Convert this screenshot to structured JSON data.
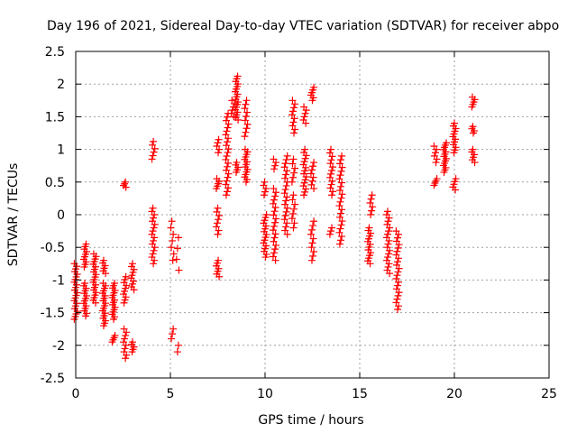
{
  "chart_data": {
    "type": "scatter",
    "title": "Day 196 of 2021, Sidereal Day-to-day VTEC variation (SDTVAR) for receiver abpo",
    "xlabel": "GPS time / hours",
    "ylabel": "SDTVAR / TECUs",
    "xlim": [
      0,
      25
    ],
    "ylim": [
      -2.5,
      2.5
    ],
    "xticks": [
      "0",
      "5",
      "10",
      "15",
      "20",
      "25"
    ],
    "yticks": [
      "2.5",
      "2",
      "1.5",
      "1",
      "0.5",
      "0",
      "-0.5",
      "-1",
      "-1.5",
      "-2",
      "-2.5"
    ],
    "grid": true,
    "marker": "+",
    "color": "#ff0000",
    "clusters": [
      {
        "x": 0.0,
        "y0": -1.6,
        "y1": -0.75,
        "n": 22
      },
      {
        "x": 0.5,
        "y0": -1.55,
        "y1": -1.05,
        "n": 14
      },
      {
        "x": 0.5,
        "y0": -0.8,
        "y1": -0.45,
        "n": 10
      },
      {
        "x": 1.0,
        "y0": -1.35,
        "y1": -0.6,
        "n": 20
      },
      {
        "x": 1.5,
        "y0": -1.7,
        "y1": -1.05,
        "n": 18
      },
      {
        "x": 1.5,
        "y0": -0.9,
        "y1": -0.7,
        "n": 6
      },
      {
        "x": 2.0,
        "y0": -1.6,
        "y1": -1.05,
        "n": 16
      },
      {
        "x": 2.0,
        "y0": -1.95,
        "y1": -1.85,
        "n": 4
      },
      {
        "x": 2.6,
        "y0": -2.2,
        "y1": -1.75,
        "n": 10
      },
      {
        "x": 2.6,
        "y0": -1.35,
        "y1": -0.95,
        "n": 10
      },
      {
        "x": 2.6,
        "y0": 0.42,
        "y1": 0.5,
        "n": 4
      },
      {
        "x": 3.0,
        "y0": -2.1,
        "y1": -1.95,
        "n": 5
      },
      {
        "x": 3.0,
        "y0": -1.15,
        "y1": -0.75,
        "n": 10
      },
      {
        "x": 4.1,
        "y0": -0.75,
        "y1": 0.1,
        "n": 18
      },
      {
        "x": 4.1,
        "y0": 0.85,
        "y1": 1.12,
        "n": 6
      },
      {
        "x": 5.1,
        "y0": -0.7,
        "y1": -0.1,
        "n": 7
      },
      {
        "x": 5.1,
        "y0": -1.9,
        "y1": -1.75,
        "n": 3
      },
      {
        "x": 5.4,
        "y0": -0.85,
        "y1": -0.35,
        "n": 4
      },
      {
        "x": 5.4,
        "y0": -2.1,
        "y1": -2.0,
        "n": 2
      },
      {
        "x": 7.5,
        "y0": -0.95,
        "y1": -0.7,
        "n": 7
      },
      {
        "x": 7.5,
        "y0": -0.3,
        "y1": 0.1,
        "n": 8
      },
      {
        "x": 7.5,
        "y0": 0.4,
        "y1": 0.55,
        "n": 5
      },
      {
        "x": 7.5,
        "y0": 0.95,
        "y1": 1.15,
        "n": 5
      },
      {
        "x": 8.0,
        "y0": 0.3,
        "y1": 1.55,
        "n": 24
      },
      {
        "x": 8.3,
        "y0": 1.5,
        "y1": 1.75,
        "n": 6
      },
      {
        "x": 8.5,
        "y0": 0.65,
        "y1": 0.8,
        "n": 5
      },
      {
        "x": 8.5,
        "y0": 1.45,
        "y1": 2.12,
        "n": 18
      },
      {
        "x": 9.0,
        "y0": 0.5,
        "y1": 1.0,
        "n": 14
      },
      {
        "x": 9.0,
        "y0": 1.2,
        "y1": 1.75,
        "n": 10
      },
      {
        "x": 10.0,
        "y0": -0.65,
        "y1": 0.0,
        "n": 16
      },
      {
        "x": 10.0,
        "y0": 0.3,
        "y1": 0.5,
        "n": 5
      },
      {
        "x": 10.5,
        "y0": -0.7,
        "y1": 0.4,
        "n": 20
      },
      {
        "x": 10.5,
        "y0": 0.7,
        "y1": 0.85,
        "n": 4
      },
      {
        "x": 11.1,
        "y0": -0.3,
        "y1": 0.9,
        "n": 22
      },
      {
        "x": 11.5,
        "y0": -0.2,
        "y1": 0.3,
        "n": 8
      },
      {
        "x": 11.5,
        "y0": 0.5,
        "y1": 0.85,
        "n": 6
      },
      {
        "x": 11.5,
        "y0": 1.25,
        "y1": 1.75,
        "n": 10
      },
      {
        "x": 12.1,
        "y0": 0.3,
        "y1": 1.0,
        "n": 16
      },
      {
        "x": 12.1,
        "y0": 1.4,
        "y1": 1.65,
        "n": 6
      },
      {
        "x": 12.5,
        "y0": -0.7,
        "y1": -0.1,
        "n": 10
      },
      {
        "x": 12.5,
        "y0": 0.4,
        "y1": 0.8,
        "n": 8
      },
      {
        "x": 12.5,
        "y0": 1.75,
        "y1": 1.95,
        "n": 6
      },
      {
        "x": 13.5,
        "y0": -0.3,
        "y1": -0.2,
        "n": 3
      },
      {
        "x": 13.5,
        "y0": 0.3,
        "y1": 1.0,
        "n": 14
      },
      {
        "x": 14.0,
        "y0": -0.45,
        "y1": 0.9,
        "n": 24
      },
      {
        "x": 15.5,
        "y0": -0.75,
        "y1": -0.2,
        "n": 14
      },
      {
        "x": 15.6,
        "y0": 0.0,
        "y1": 0.3,
        "n": 6
      },
      {
        "x": 16.5,
        "y0": -0.9,
        "y1": 0.05,
        "n": 20
      },
      {
        "x": 17.0,
        "y0": -1.45,
        "y1": -0.25,
        "n": 24
      },
      {
        "x": 19.0,
        "y0": 0.45,
        "y1": 0.55,
        "n": 4
      },
      {
        "x": 19.0,
        "y0": 0.8,
        "y1": 1.05,
        "n": 6
      },
      {
        "x": 19.5,
        "y0": 0.65,
        "y1": 1.1,
        "n": 14
      },
      {
        "x": 20.0,
        "y0": 0.38,
        "y1": 0.55,
        "n": 5
      },
      {
        "x": 20.0,
        "y0": 0.95,
        "y1": 1.4,
        "n": 12
      },
      {
        "x": 21.0,
        "y0": 0.8,
        "y1": 1.0,
        "n": 6
      },
      {
        "x": 21.0,
        "y0": 1.25,
        "y1": 1.35,
        "n": 4
      },
      {
        "x": 21.0,
        "y0": 1.65,
        "y1": 1.8,
        "n": 5
      }
    ]
  }
}
